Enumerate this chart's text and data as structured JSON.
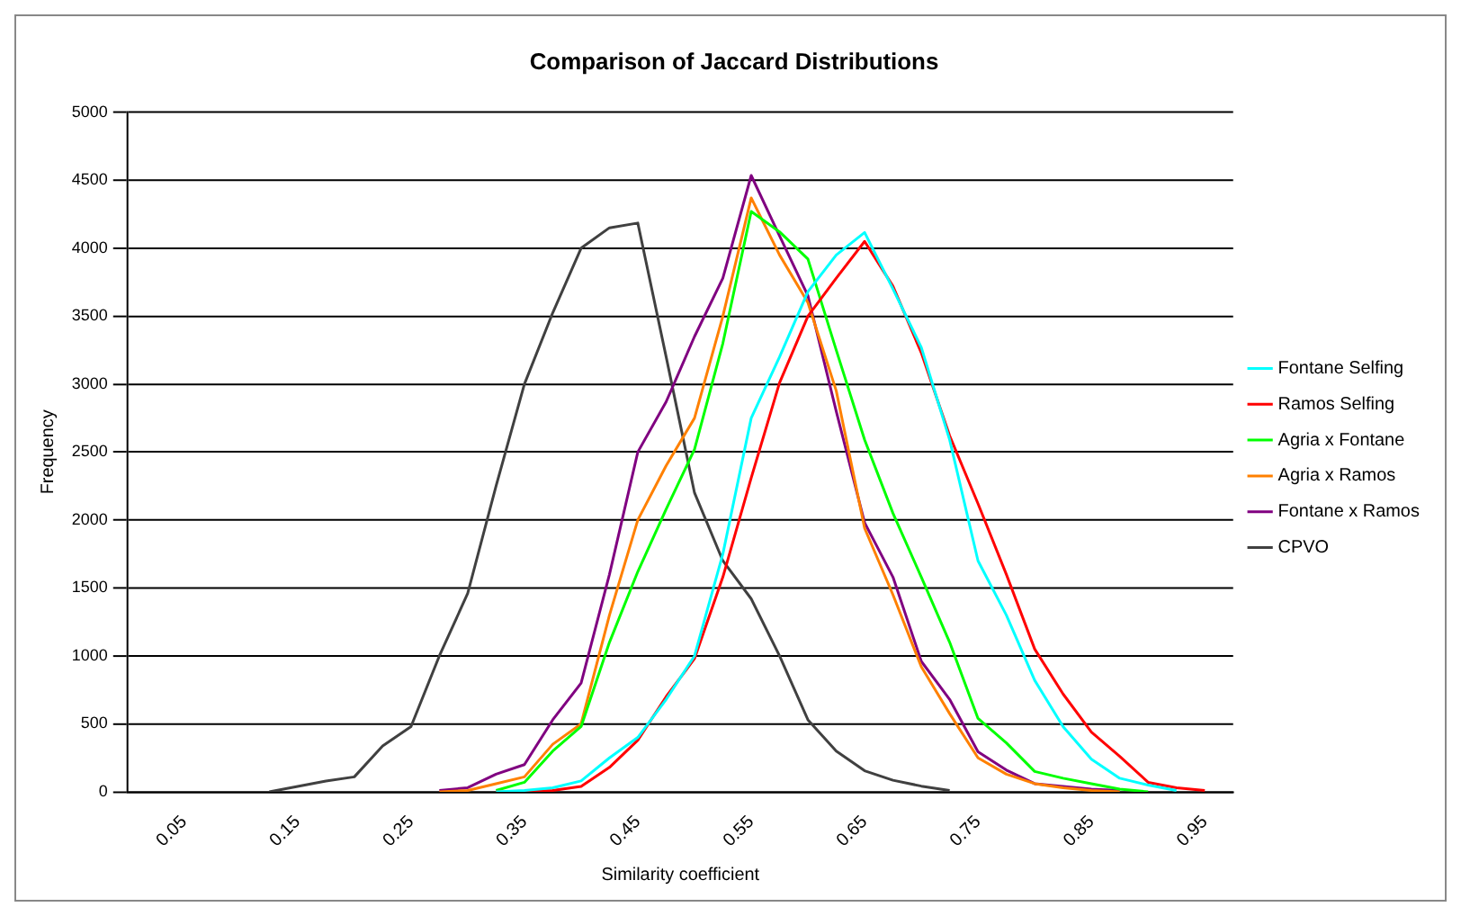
{
  "chart_data": {
    "type": "line",
    "title": "Comparison of Jaccard Distributions",
    "xlabel": "Similarity coefficient",
    "ylabel": "Frequency",
    "categories": [
      null,
      null,
      "0.05",
      null,
      null,
      null,
      "0.15",
      null,
      null,
      null,
      "0.25",
      null,
      null,
      null,
      "0.35",
      null,
      null,
      null,
      "0.45",
      null,
      null,
      null,
      "0.55",
      null,
      null,
      null,
      "0.65",
      null,
      null,
      null,
      "0.75",
      null,
      null,
      null,
      "0.85",
      null,
      null,
      null,
      "0.95",
      null
    ],
    "series": [
      {
        "name": "Fontane Selfing",
        "color": "#00ffff",
        "values": [
          null,
          null,
          null,
          null,
          null,
          null,
          null,
          null,
          null,
          null,
          null,
          null,
          null,
          0,
          10,
          30,
          80,
          250,
          400,
          680,
          1000,
          1750,
          2750,
          3200,
          3680,
          3950,
          4115,
          3700,
          3270,
          2590,
          1700,
          1300,
          820,
          480,
          240,
          100,
          50,
          10,
          null,
          null
        ]
      },
      {
        "name": "Ramos Selfing",
        "color": "#ff0000",
        "values": [
          null,
          null,
          null,
          null,
          null,
          null,
          null,
          null,
          null,
          null,
          null,
          null,
          null,
          0,
          0,
          10,
          40,
          180,
          380,
          700,
          980,
          1580,
          2310,
          3010,
          3500,
          3780,
          4050,
          3720,
          3230,
          2620,
          2120,
          1600,
          1050,
          720,
          440,
          260,
          70,
          30,
          10,
          null
        ]
      },
      {
        "name": "Agria x Fontane",
        "color": "#00ff00",
        "values": [
          null,
          null,
          null,
          null,
          null,
          null,
          null,
          null,
          null,
          null,
          null,
          null,
          null,
          10,
          70,
          300,
          480,
          1100,
          1620,
          2080,
          2520,
          3300,
          4270,
          4120,
          3920,
          3250,
          2590,
          2050,
          1580,
          1100,
          540,
          360,
          150,
          100,
          60,
          20,
          0,
          null,
          null,
          null
        ]
      },
      {
        "name": "Agria x Ramos",
        "color": "#ff8000",
        "values": [
          null,
          null,
          null,
          null,
          null,
          null,
          null,
          null,
          null,
          null,
          null,
          0,
          10,
          60,
          110,
          350,
          500,
          1300,
          2000,
          2400,
          2750,
          3500,
          4370,
          3950,
          3600,
          2950,
          1940,
          1450,
          920,
          575,
          250,
          130,
          60,
          30,
          10,
          0,
          null,
          null,
          null,
          null
        ]
      },
      {
        "name": "Fontane x Ramos",
        "color": "#800080",
        "values": [
          null,
          null,
          null,
          null,
          null,
          null,
          null,
          null,
          null,
          null,
          null,
          10,
          30,
          130,
          200,
          530,
          800,
          1600,
          2500,
          2870,
          3350,
          3780,
          4535,
          4090,
          3650,
          2800,
          1980,
          1580,
          960,
          680,
          295,
          160,
          60,
          40,
          20,
          10,
          null,
          null,
          null,
          null
        ]
      },
      {
        "name": "CPVO",
        "color": "#404040",
        "values": [
          null,
          null,
          null,
          null,
          null,
          0,
          40,
          80,
          110,
          337,
          480,
          1000,
          1460,
          2250,
          3000,
          3525,
          4000,
          4150,
          4185,
          3200,
          2200,
          1700,
          1420,
          1000,
          530,
          300,
          155,
          85,
          42,
          10,
          null,
          null,
          null,
          null,
          null,
          null,
          null,
          null,
          null,
          null
        ]
      }
    ],
    "ylim": [
      0,
      5000
    ],
    "yticks": [
      0,
      500,
      1000,
      1500,
      2000,
      2500,
      3000,
      3500,
      4000,
      4500,
      5000
    ],
    "grid": "y",
    "legend": "right",
    "marker": "none",
    "line_style": "solid"
  }
}
